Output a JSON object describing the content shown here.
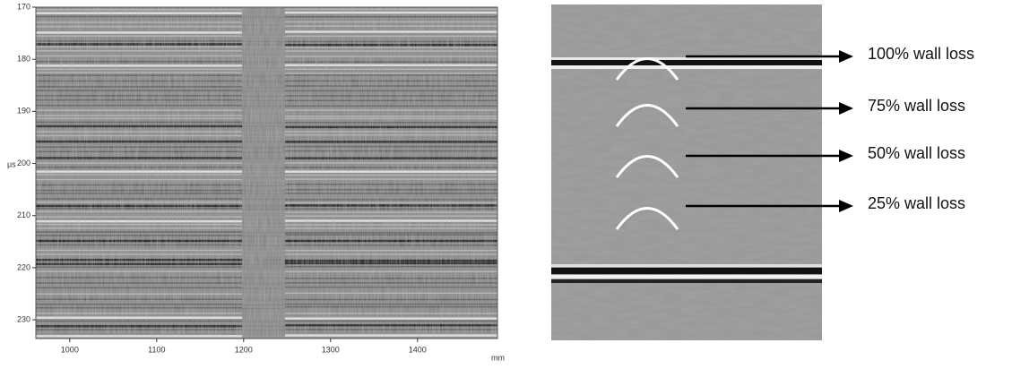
{
  "left_panel": {
    "xlabel": "mm",
    "ylabel": "μs",
    "xlim": [
      961,
      1492
    ],
    "ylim": [
      170,
      233.6
    ],
    "xticks": [
      1000,
      1100,
      1200,
      1300,
      1400
    ],
    "yticks": [
      170,
      180,
      190,
      200,
      210,
      220,
      230
    ]
  },
  "right_panel": {
    "labels": [
      "100% wall loss",
      "75% wall loss",
      "50% wall loss",
      "25% wall loss"
    ]
  }
}
